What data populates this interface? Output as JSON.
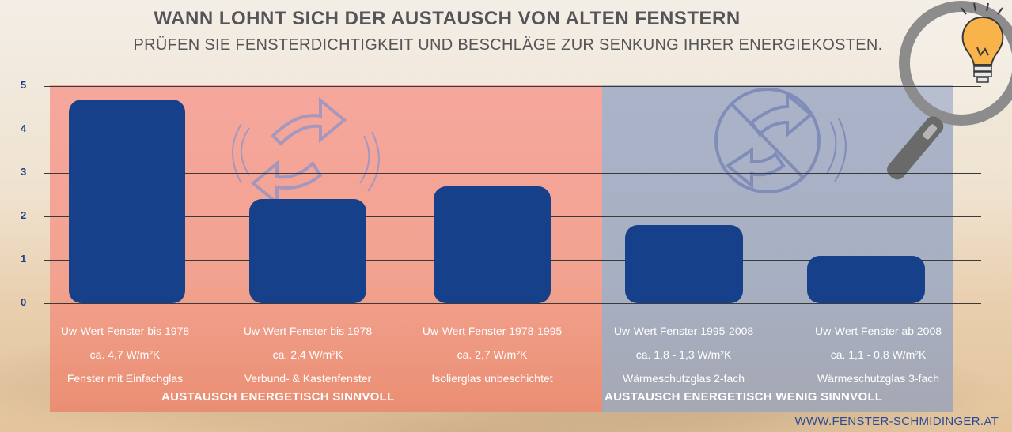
{
  "title": "WANN LOHNT SICH DER AUSTAUSCH VON ALTEN FENSTERN",
  "subtitle": "PRÜFEN SIE FENSTERDICHTIGKEIT UND BESCHLÄGE ZUR SENKUNG IHRER ENERGIEKOSTEN.",
  "regions": {
    "left_label": "AUSTAUSCH ENERGETISCH SINNVOLL",
    "right_label": "AUSTAUSCH ENERGETISCH WENIG SINNVOLL"
  },
  "footer_url": "WWW.FENSTER-SCHMIDINGER.AT",
  "colors": {
    "bar": "#17408b",
    "left_panel": "#f4a497",
    "right_panel": "#a9b1c5",
    "tick_text": "#1f3f8a"
  },
  "icons": [
    "recycle-arrows-icon",
    "no-exchange-icon",
    "magnifier-icon",
    "lightbulb-icon"
  ],
  "chart_data": {
    "type": "bar",
    "ylim": [
      0,
      5
    ],
    "yticks": [
      "0",
      "1",
      "2",
      "3",
      "4",
      "5"
    ],
    "grid": true,
    "categories": [
      [
        "Uw-Wert Fenster bis 1978",
        "ca. 4,7 W/m²K",
        "Fenster mit Einfachglas"
      ],
      [
        "Uw-Wert Fenster bis 1978",
        "ca. 2,4 W/m²K",
        "Verbund- & Kastenfenster"
      ],
      [
        "Uw-Wert Fenster 1978-1995",
        "ca. 2,7 W/m²K",
        "Isolierglas unbeschichtet"
      ],
      [
        "Uw-Wert Fenster 1995-2008",
        "ca. 1,8 - 1,3 W/m²K",
        "Wärmeschutzglas 2-fach"
      ],
      [
        "Uw-Wert Fenster ab 2008",
        "ca. 1,1 - 0,8 W/m²K",
        "Wärmeschutzglas 3-fach"
      ]
    ],
    "values": [
      4.7,
      2.4,
      2.7,
      1.8,
      1.1
    ]
  }
}
